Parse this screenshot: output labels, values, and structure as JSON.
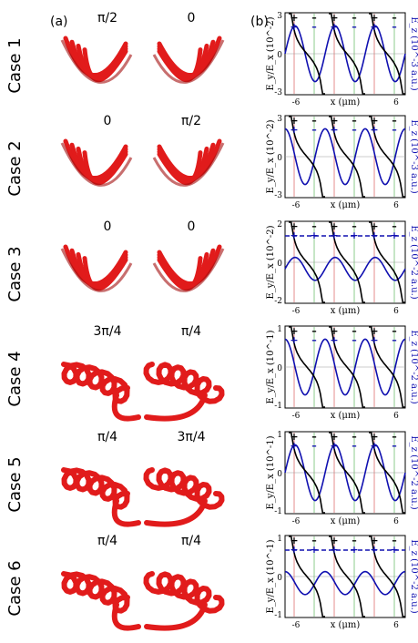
{
  "panel_labels": {
    "a": "(a)",
    "b": "(b)"
  },
  "colors": {
    "helix": "#e11b1b",
    "helix_shade": "#a30f0f",
    "ey_curve": "#000000",
    "ez_curve": "#1010b0",
    "plus": "#1010b0",
    "minus": "#1010b0",
    "red_line": "#e07070",
    "green_line": "#70c070"
  },
  "cases": [
    {
      "label": "Case 1",
      "phase_left": "π/2",
      "phase_right": "0",
      "left_axis": "E_y/E_x (10^-2)",
      "right_axis": "E_z (10^-3 a.u.)",
      "y_ticks": [
        "3",
        "0",
        "-3"
      ],
      "x_ticks": [
        "-6",
        "6"
      ],
      "x_label": "x (μm)",
      "signs_top": [
        "+",
        "–",
        "+",
        "–",
        "+",
        "–"
      ],
      "signs_bottom": [
        "+",
        "–",
        "+",
        "–",
        "+",
        "–"
      ]
    },
    {
      "label": "Case 2",
      "phase_left": "0",
      "phase_right": "π/2",
      "left_axis": "E_y/E_x (10^-2)",
      "right_axis": "E_z (10^-3 a.u.)",
      "y_ticks": [
        "3",
        "0",
        "-3"
      ],
      "x_ticks": [
        "-6",
        "6"
      ],
      "x_label": "x (μm)",
      "signs_top": [
        "+",
        "–",
        "+",
        "–",
        "+",
        "–"
      ],
      "signs_bottom": [
        "+",
        "–",
        "+",
        "–",
        "+",
        "–"
      ]
    },
    {
      "label": "Case 3",
      "phase_left": "0",
      "phase_right": "0",
      "left_axis": "E_y/E_x (10^-2)",
      "right_axis": "E_z (10^-2 a.u.)",
      "y_ticks": [
        "2",
        "0",
        "-2"
      ],
      "x_ticks": [
        "-6",
        "6"
      ],
      "x_label": "x (μm)",
      "signs_top": [
        "+",
        "–",
        "+",
        "–",
        "+",
        "–"
      ],
      "signs_bottom": [
        "+",
        "+",
        "+",
        "+",
        "+",
        "+"
      ]
    },
    {
      "label": "Case 4",
      "phase_left": "3π/4",
      "phase_right": "π/4",
      "left_axis": "E_y/E_x (10^-1)",
      "right_axis": "E_z (10^-2 a.u.)",
      "y_ticks": [
        "1",
        "0",
        "-1"
      ],
      "x_ticks": [
        "-6",
        "6"
      ],
      "x_label": "x (μm)",
      "signs_top": [
        "+",
        "–",
        "+",
        "–",
        "+",
        "–"
      ],
      "signs_bottom": [
        "+",
        "–",
        "+",
        "–",
        "+",
        "–"
      ]
    },
    {
      "label": "Case 5",
      "phase_left": "π/4",
      "phase_right": "3π/4",
      "left_axis": "E_y/E_x (10^-1)",
      "right_axis": "E_z (10^-2 a.u.)",
      "y_ticks": [
        "1",
        "0",
        "-1"
      ],
      "x_ticks": [
        "-6",
        "6"
      ],
      "x_label": "x (μm)",
      "signs_top": [
        "+",
        "–",
        "+",
        "–",
        "+",
        "–"
      ],
      "signs_bottom": [
        "+",
        "–",
        "+",
        "–",
        "+",
        "–"
      ]
    },
    {
      "label": "Case 6",
      "phase_left": "π/4",
      "phase_right": "π/4",
      "left_axis": "E_y/E_x (10^-1)",
      "right_axis": "E_z (10^-2 a.u.)",
      "y_ticks": [
        "1",
        "0",
        "-1"
      ],
      "x_ticks": [
        "-6",
        "6"
      ],
      "x_label": "x (μm)",
      "signs_top": [
        "+",
        "–",
        "+",
        "–",
        "+",
        "–"
      ],
      "signs_bottom": [
        "+",
        "+",
        "+",
        "+",
        "+",
        "+"
      ]
    }
  ]
}
